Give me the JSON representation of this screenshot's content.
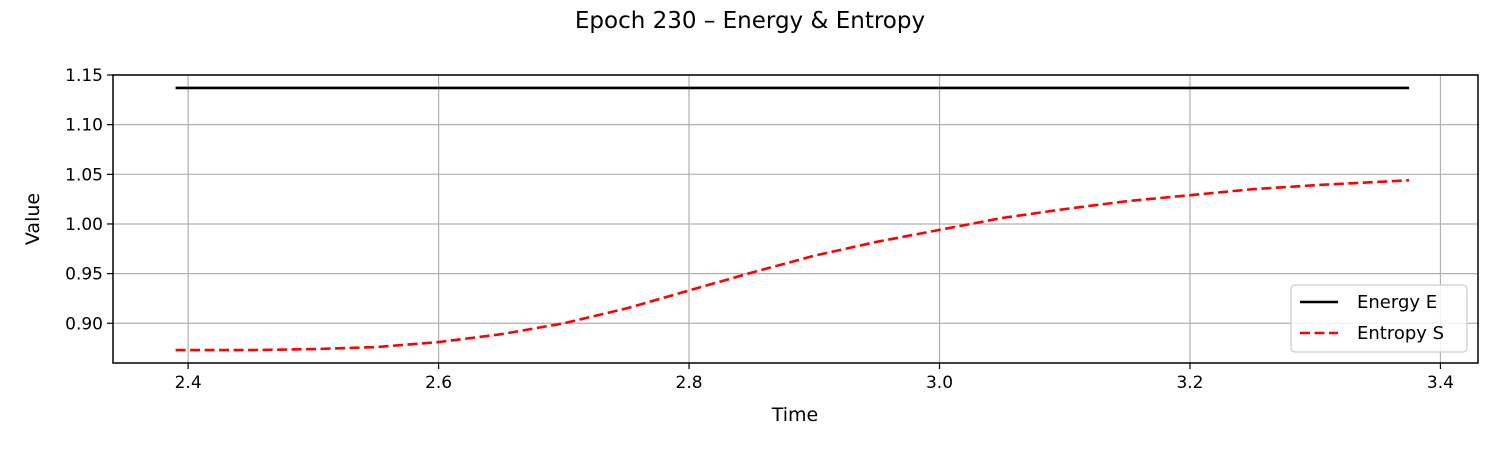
{
  "chart_data": {
    "type": "line",
    "title": "Epoch 230 – Energy & Entropy",
    "xlabel": "Time",
    "ylabel": "Value",
    "xlim": [
      2.34,
      3.43
    ],
    "ylim": [
      0.86,
      1.15
    ],
    "xticks": [
      2.4,
      2.6,
      2.8,
      3.0,
      3.2,
      3.4
    ],
    "xtick_labels": [
      "2.4",
      "2.6",
      "2.8",
      "3.0",
      "3.2",
      "3.4"
    ],
    "yticks": [
      0.9,
      0.95,
      1.0,
      1.05,
      1.1,
      1.15
    ],
    "ytick_labels": [
      "0.90",
      "0.95",
      "1.00",
      "1.05",
      "1.10",
      "1.15"
    ],
    "grid": true,
    "legend_position": "lower-right",
    "series": [
      {
        "name": "Energy E",
        "color": "#000000",
        "style": "solid",
        "x": [
          2.39,
          2.5,
          2.6,
          2.7,
          2.8,
          2.9,
          3.0,
          3.1,
          3.2,
          3.3,
          3.375
        ],
        "y": [
          1.137,
          1.137,
          1.137,
          1.137,
          1.137,
          1.137,
          1.137,
          1.137,
          1.137,
          1.137,
          1.137
        ]
      },
      {
        "name": "Entropy S",
        "color": "#ff0000",
        "style": "dashed",
        "x": [
          2.39,
          2.45,
          2.5,
          2.55,
          2.6,
          2.65,
          2.7,
          2.75,
          2.8,
          2.85,
          2.9,
          2.95,
          3.0,
          3.05,
          3.1,
          3.15,
          3.2,
          3.25,
          3.3,
          3.375
        ],
        "y": [
          0.873,
          0.873,
          0.874,
          0.876,
          0.881,
          0.889,
          0.9,
          0.915,
          0.933,
          0.951,
          0.968,
          0.982,
          0.994,
          1.006,
          1.015,
          1.023,
          1.029,
          1.035,
          1.039,
          1.044
        ]
      }
    ]
  }
}
